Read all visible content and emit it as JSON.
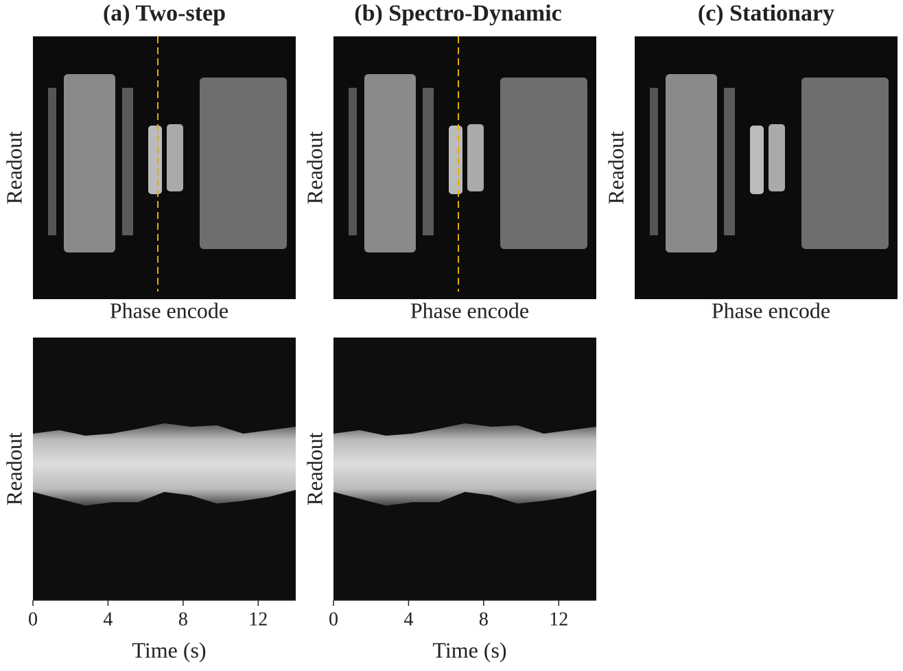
{
  "panels": [
    {
      "title": "(a) Two-step",
      "ylabel": "Readout",
      "xlabel": "Phase encode"
    },
    {
      "title": "(b) Spectro-Dynamic",
      "ylabel": "Readout",
      "xlabel": "Phase encode"
    },
    {
      "title": "(c) Stationary",
      "ylabel": "Readout",
      "xlabel": "Phase encode"
    }
  ],
  "time_plots": {
    "ylabel": "Readout",
    "xlabel": "Time (s)",
    "xlim": [
      0,
      14
    ],
    "xticks": [
      0,
      4,
      8,
      12
    ]
  }
}
